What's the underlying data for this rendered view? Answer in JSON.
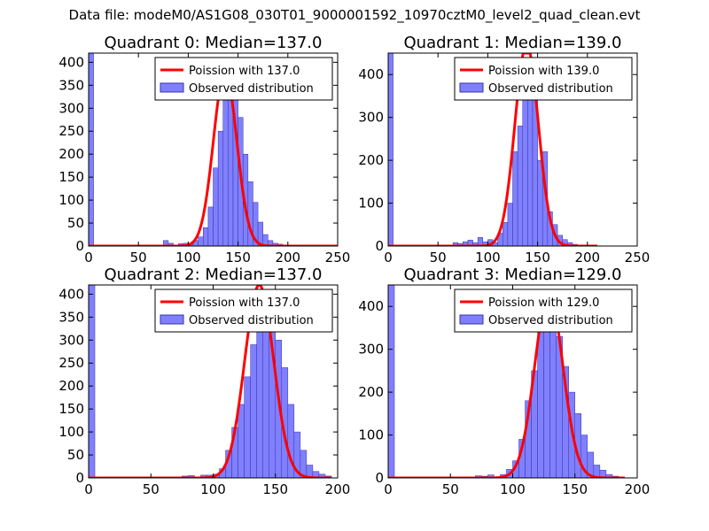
{
  "suptitle": "Data file: modeM0/AS1G08_030T01_9000001592_10970cztM0_level2_quad_clean.evt",
  "colors": {
    "hist_fill": "#8080ff",
    "hist_edge": "#3333aa",
    "poisson_line": "#ff0000",
    "axes": "#000000"
  },
  "chart_data": [
    {
      "type": "bar",
      "title": "Quadrant 0: Median=137.0",
      "median": 137.0,
      "xlim": [
        0,
        250
      ],
      "ylim": [
        0,
        420
      ],
      "xticks": [
        0,
        50,
        100,
        150,
        200,
        250
      ],
      "yticks": [
        0,
        50,
        100,
        150,
        200,
        250,
        300,
        350,
        400
      ],
      "legend": [
        "Poission with 137.0",
        "Observed distribution"
      ],
      "legend_loc": "upper right",
      "bin_width": 5,
      "bins": [
        [
          0,
          420
        ],
        [
          75,
          12
        ],
        [
          80,
          6
        ],
        [
          90,
          5
        ],
        [
          95,
          6
        ],
        [
          100,
          6
        ],
        [
          105,
          12
        ],
        [
          110,
          20
        ],
        [
          115,
          40
        ],
        [
          120,
          85
        ],
        [
          125,
          170
        ],
        [
          130,
          250
        ],
        [
          135,
          330
        ],
        [
          140,
          360
        ],
        [
          145,
          330
        ],
        [
          150,
          280
        ],
        [
          155,
          200
        ],
        [
          160,
          140
        ],
        [
          165,
          95
        ],
        [
          170,
          52
        ],
        [
          175,
          25
        ],
        [
          180,
          12
        ],
        [
          185,
          6
        ],
        [
          190,
          4
        ]
      ],
      "poisson_curve": {
        "mean": 137.0,
        "peak": 380,
        "x_range": [
          0,
          250
        ]
      }
    },
    {
      "type": "bar",
      "title": "Quadrant 1: Median=139.0",
      "median": 139.0,
      "xlim": [
        0,
        250
      ],
      "ylim": [
        0,
        450
      ],
      "xticks": [
        0,
        50,
        100,
        150,
        200,
        250
      ],
      "yticks": [
        0,
        100,
        200,
        300,
        400
      ],
      "legend": [
        "Poission with 139.0",
        "Observed distribution"
      ],
      "legend_loc": "upper right",
      "bin_width": 5,
      "bins": [
        [
          0,
          450
        ],
        [
          65,
          8
        ],
        [
          70,
          6
        ],
        [
          75,
          10
        ],
        [
          80,
          14
        ],
        [
          85,
          8
        ],
        [
          90,
          20
        ],
        [
          95,
          10
        ],
        [
          100,
          15
        ],
        [
          105,
          8
        ],
        [
          110,
          30
        ],
        [
          115,
          55
        ],
        [
          120,
          100
        ],
        [
          125,
          220
        ],
        [
          130,
          280
        ],
        [
          135,
          370
        ],
        [
          140,
          380
        ],
        [
          145,
          340
        ],
        [
          150,
          200
        ],
        [
          155,
          220
        ],
        [
          160,
          80
        ],
        [
          165,
          50
        ],
        [
          170,
          25
        ],
        [
          175,
          15
        ],
        [
          180,
          8
        ],
        [
          185,
          4
        ]
      ],
      "poisson_curve": {
        "mean": 139.0,
        "peak": 470,
        "x_range": [
          0,
          210
        ]
      }
    },
    {
      "type": "bar",
      "title": "Quadrant 2: Median=137.0",
      "median": 137.0,
      "xlim": [
        0,
        200
      ],
      "ylim": [
        0,
        420
      ],
      "xticks": [
        0,
        50,
        100,
        150,
        200
      ],
      "yticks": [
        0,
        50,
        100,
        150,
        200,
        250,
        300,
        350,
        400
      ],
      "legend": [
        "Poission with 137.0",
        "Observed distribution"
      ],
      "legend_loc": "upper right",
      "bin_width": 5,
      "bins": [
        [
          0,
          420
        ],
        [
          75,
          4
        ],
        [
          80,
          5
        ],
        [
          90,
          6
        ],
        [
          95,
          6
        ],
        [
          100,
          8
        ],
        [
          105,
          20
        ],
        [
          110,
          60
        ],
        [
          115,
          110
        ],
        [
          120,
          160
        ],
        [
          125,
          220
        ],
        [
          130,
          290
        ],
        [
          135,
          370
        ],
        [
          140,
          410
        ],
        [
          145,
          360
        ],
        [
          150,
          300
        ],
        [
          155,
          240
        ],
        [
          160,
          160
        ],
        [
          165,
          100
        ],
        [
          170,
          60
        ],
        [
          175,
          28
        ],
        [
          180,
          14
        ],
        [
          185,
          8
        ],
        [
          190,
          4
        ]
      ],
      "poisson_curve": {
        "mean": 137.0,
        "peak": 420,
        "x_range": [
          0,
          195
        ]
      }
    },
    {
      "type": "bar",
      "title": "Quadrant 3: Median=129.0",
      "median": 129.0,
      "xlim": [
        0,
        200
      ],
      "ylim": [
        0,
        450
      ],
      "xticks": [
        0,
        50,
        100,
        150,
        200
      ],
      "yticks": [
        0,
        100,
        200,
        300,
        400
      ],
      "legend": [
        "Poission with 129.0",
        "Observed distribution"
      ],
      "legend_loc": "upper right",
      "bin_width": 5,
      "bins": [
        [
          0,
          450
        ],
        [
          70,
          5
        ],
        [
          75,
          4
        ],
        [
          80,
          7
        ],
        [
          90,
          8
        ],
        [
          95,
          20
        ],
        [
          100,
          40
        ],
        [
          105,
          90
        ],
        [
          110,
          180
        ],
        [
          115,
          250
        ],
        [
          120,
          350
        ],
        [
          125,
          420
        ],
        [
          130,
          360
        ],
        [
          135,
          330
        ],
        [
          140,
          260
        ],
        [
          145,
          200
        ],
        [
          150,
          150
        ],
        [
          155,
          100
        ],
        [
          160,
          60
        ],
        [
          165,
          30
        ],
        [
          170,
          18
        ],
        [
          175,
          8
        ],
        [
          180,
          4
        ]
      ],
      "poisson_curve": {
        "mean": 129.0,
        "peak": 430,
        "x_range": [
          0,
          190
        ]
      }
    }
  ]
}
